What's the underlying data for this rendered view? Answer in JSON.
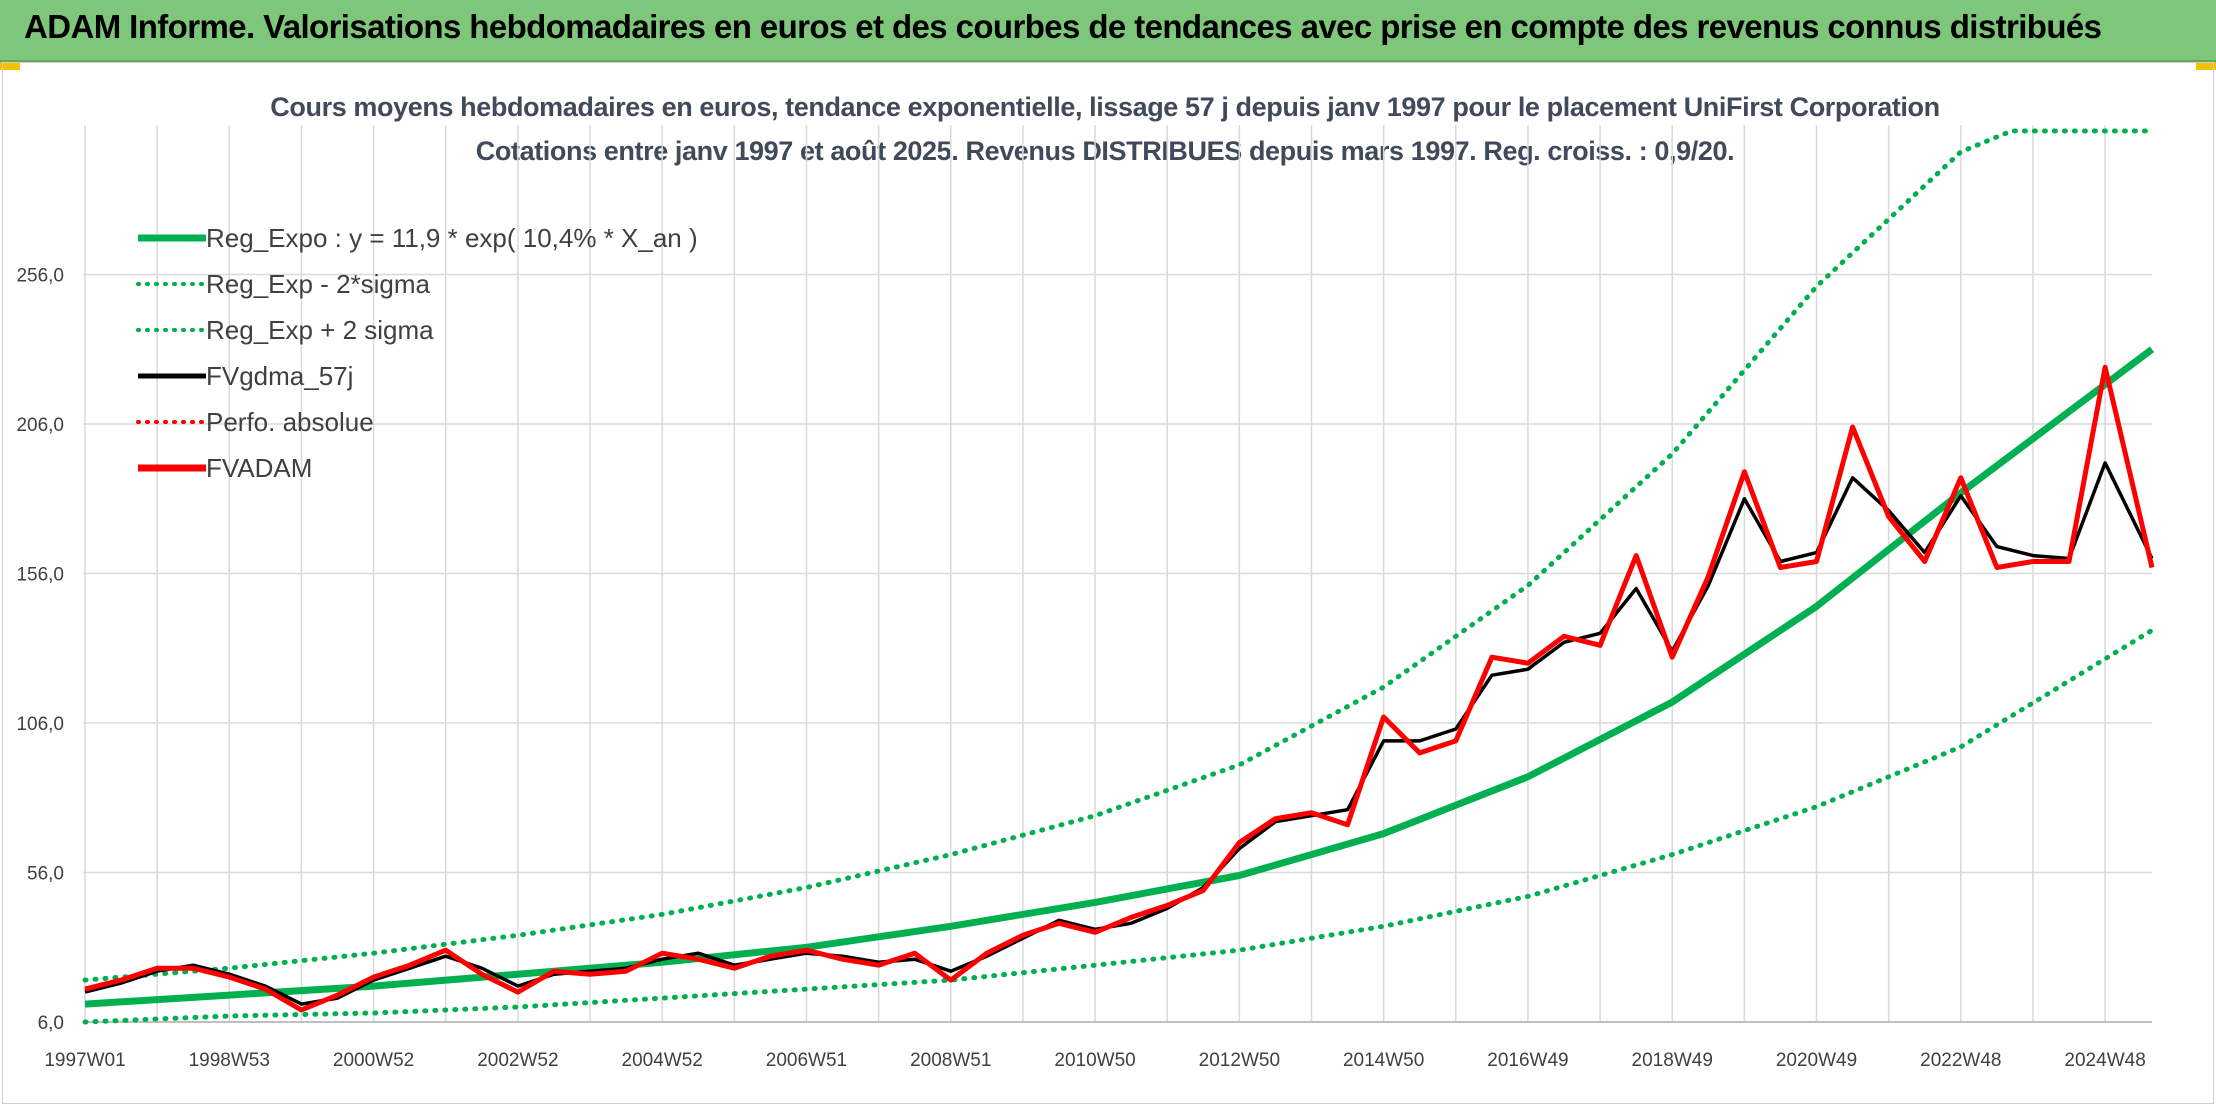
{
  "header": {
    "title": "ADAM Informe. Valorisations hebdomadaires en euros et des courbes de tendances avec prise en compte des revenus connus distribués"
  },
  "colors": {
    "banner": "#7dc67a",
    "reg_expo": "#00b050",
    "fvadam": "#ff0000",
    "fvgdma": "#000000",
    "perfo": "#ff0000",
    "grid": "#d9d9d9",
    "text": "#404040"
  },
  "chart_data": {
    "type": "line",
    "title": "Cours moyens hebdomadaires en euros, tendance exponentielle, lissage 57 j depuis janv 1997 pour le placement UniFirst Corporation",
    "subtitle": "Cotations entre janv 1997 et août 2025. Revenus DISTRIBUES depuis mars 1997. Reg. croiss. : 0,9/20.",
    "xlabel": "",
    "ylabel": "",
    "x_range": [
      1997.0,
      2025.65
    ],
    "ylim": [
      6,
      306
    ],
    "y_ticks": [
      "6,0",
      "56,0",
      "106,0",
      "156,0",
      "206,0",
      "256,0"
    ],
    "y_tick_values": [
      6,
      56,
      106,
      156,
      206,
      256
    ],
    "x_ticks": [
      "1997W01",
      "1998W53",
      "2000W52",
      "2002W52",
      "2004W52",
      "2006W51",
      "2008W51",
      "2010W50",
      "2012W50",
      "2014W50",
      "2016W49",
      "2018W49",
      "2020W49",
      "2022W48",
      "2024W48"
    ],
    "x_tick_years": [
      1997.0,
      1999.0,
      2001.0,
      2003.0,
      2005.0,
      2007.0,
      2009.0,
      2011.0,
      2013.0,
      2015.0,
      2017.0,
      2019.0,
      2021.0,
      2023.0,
      2025.0
    ],
    "grid": true,
    "legend_position": "top-left",
    "legend": [
      {
        "label": "Reg_Expo : y = 11,9 * exp( 10,4% *  X_an )",
        "style": "solid-thick",
        "color": "#00b050"
      },
      {
        "label": "Reg_Exp - 2*sigma",
        "style": "dotted",
        "color": "#00b050"
      },
      {
        "label": "Reg_Exp + 2 sigma",
        "style": "dotted",
        "color": "#00b050"
      },
      {
        "label": "FVgdma_57j",
        "style": "solid",
        "color": "#000000"
      },
      {
        "label": "Perfo. absolue",
        "style": "dotted",
        "color": "#ff0000"
      },
      {
        "label": "FVADAM",
        "style": "solid-thick",
        "color": "#ff0000"
      }
    ],
    "series": [
      {
        "name": "Reg_Expo : y = 11,9 * exp( 10,4% *  X_an )",
        "x": [
          1997.0,
          1999.0,
          2001.0,
          2003.0,
          2005.0,
          2007.0,
          2009.0,
          2011.0,
          2013.0,
          2015.0,
          2017.0,
          2019.0,
          2021.0,
          2023.0,
          2025.65
        ],
        "values": [
          12,
          15,
          18,
          22,
          26,
          31,
          38,
          46,
          55,
          69,
          88,
          113,
          145,
          183,
          231
        ]
      },
      {
        "name": "Reg_Exp - 2*sigma",
        "x": [
          1997.0,
          1999.0,
          2001.0,
          2003.0,
          2005.0,
          2007.0,
          2009.0,
          2011.0,
          2013.0,
          2015.0,
          2017.0,
          2019.0,
          2021.0,
          2023.0,
          2025.65
        ],
        "values": [
          6,
          8,
          9,
          11,
          14,
          17,
          20,
          25,
          30,
          38,
          48,
          62,
          78,
          98,
          137
        ]
      },
      {
        "name": "Reg_Exp + 2 sigma",
        "x": [
          1997.0,
          1999.0,
          2001.0,
          2003.0,
          2005.0,
          2007.0,
          2009.0,
          2011.0,
          2013.0,
          2015.0,
          2017.0,
          2019.0,
          2021.0,
          2023.0,
          2023.7,
          2025.65
        ],
        "values": [
          20,
          24,
          29,
          35,
          42,
          51,
          62,
          75,
          92,
          118,
          152,
          196,
          252,
          297,
          304,
          304
        ]
      },
      {
        "name": "FVgdma_57j",
        "x": [
          1997.0,
          1997.5,
          1998.0,
          1998.5,
          1999.0,
          1999.5,
          2000.0,
          2000.5,
          2001.0,
          2001.5,
          2002.0,
          2002.5,
          2003.0,
          2003.5,
          2004.0,
          2004.5,
          2005.0,
          2005.5,
          2006.0,
          2006.5,
          2007.0,
          2007.5,
          2008.0,
          2008.5,
          2009.0,
          2009.5,
          2010.0,
          2010.5,
          2011.0,
          2011.5,
          2012.0,
          2012.5,
          2013.0,
          2013.5,
          2014.0,
          2014.5,
          2015.0,
          2015.5,
          2016.0,
          2016.5,
          2017.0,
          2017.5,
          2018.0,
          2018.5,
          2019.0,
          2019.5,
          2020.0,
          2020.5,
          2021.0,
          2021.5,
          2022.0,
          2022.5,
          2023.0,
          2023.5,
          2024.0,
          2024.5,
          2025.0,
          2025.65
        ],
        "values": [
          16,
          19,
          23,
          25,
          22,
          18,
          12,
          14,
          20,
          24,
          28,
          24,
          18,
          22,
          23,
          24,
          27,
          29,
          25,
          27,
          29,
          28,
          26,
          27,
          23,
          28,
          34,
          40,
          37,
          39,
          44,
          51,
          64,
          73,
          75,
          77,
          100,
          100,
          104,
          122,
          124,
          133,
          136,
          151,
          130,
          152,
          181,
          160,
          163,
          188,
          177,
          163,
          182,
          165,
          162,
          161,
          193,
          161
        ]
      },
      {
        "name": "FVADAM",
        "x": [
          1997.0,
          1997.5,
          1998.0,
          1998.5,
          1999.0,
          1999.5,
          2000.0,
          2000.5,
          2001.0,
          2001.5,
          2002.0,
          2002.5,
          2003.0,
          2003.5,
          2004.0,
          2004.5,
          2005.0,
          2005.5,
          2006.0,
          2006.5,
          2007.0,
          2007.5,
          2008.0,
          2008.5,
          2009.0,
          2009.5,
          2010.0,
          2010.5,
          2011.0,
          2011.5,
          2012.0,
          2012.5,
          2013.0,
          2013.5,
          2014.0,
          2014.5,
          2015.0,
          2015.5,
          2016.0,
          2016.5,
          2017.0,
          2017.5,
          2018.0,
          2018.5,
          2019.0,
          2019.5,
          2020.0,
          2020.5,
          2021.0,
          2021.5,
          2022.0,
          2022.5,
          2023.0,
          2023.5,
          2024.0,
          2024.5,
          2025.0,
          2025.65
        ],
        "values": [
          17,
          20,
          24,
          24,
          21,
          17,
          10,
          15,
          21,
          25,
          30,
          22,
          16,
          23,
          22,
          23,
          29,
          27,
          24,
          28,
          30,
          27,
          25,
          29,
          20,
          29,
          35,
          39,
          36,
          41,
          45,
          50,
          66,
          74,
          76,
          72,
          108,
          96,
          100,
          128,
          126,
          135,
          132,
          162,
          128,
          155,
          190,
          158,
          160,
          205,
          175,
          160,
          188,
          158,
          160,
          160,
          225,
          158
        ]
      }
    ]
  }
}
